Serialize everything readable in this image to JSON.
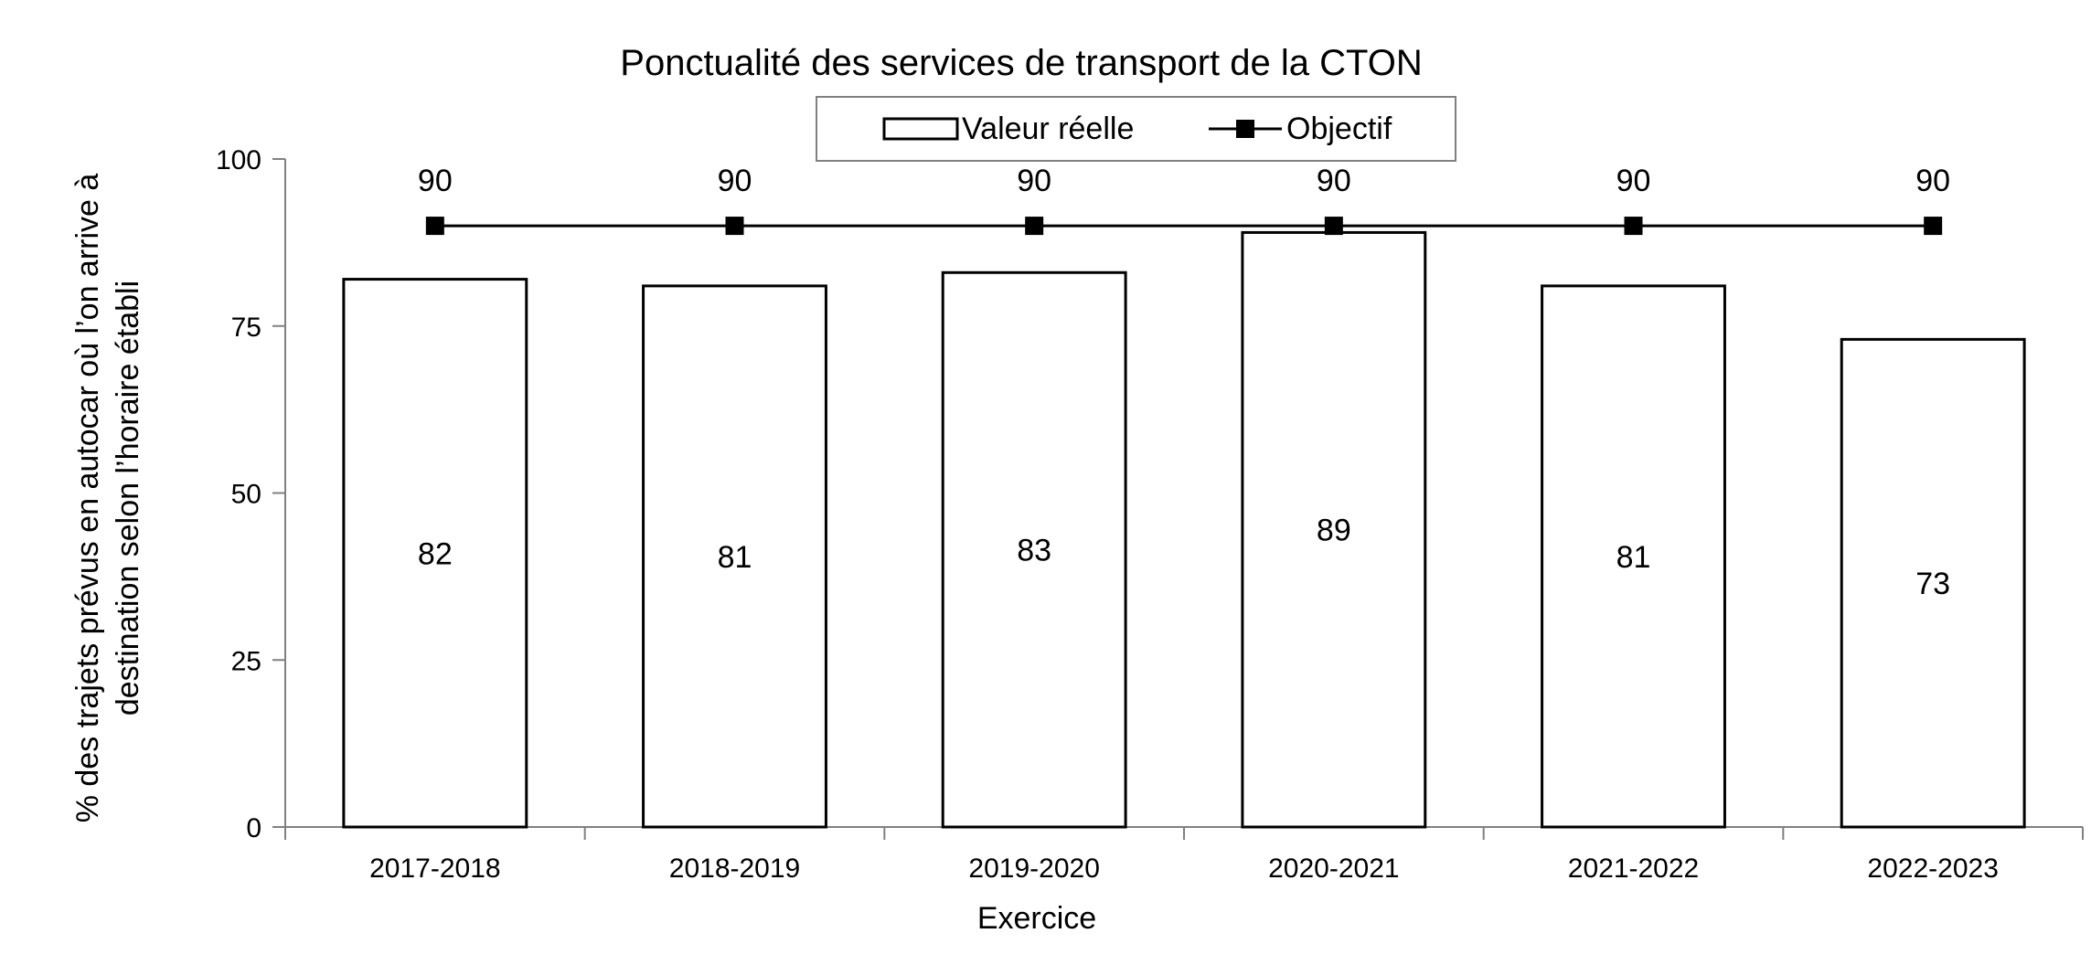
{
  "chart_data": {
    "type": "bar",
    "title": "Ponctualité des services de transport de la CTON",
    "xlabel": "Exercice",
    "ylabel_lines": [
      "% des trajets prévus en autocar où l’on arrive à",
      "destination selon l’horaire établi"
    ],
    "categories": [
      "2017-2018",
      "2018-2019",
      "2019-2020",
      "2020-2021",
      "2021-2022",
      "2022-2023"
    ],
    "series": [
      {
        "name": "Valeur réelle",
        "kind": "bar",
        "values": [
          82,
          81,
          83,
          89,
          81,
          73
        ]
      },
      {
        "name": "Objectif",
        "kind": "line",
        "marker": "square",
        "values": [
          90,
          90,
          90,
          90,
          90,
          90
        ]
      }
    ],
    "ylim": [
      0,
      100
    ],
    "yticks": [
      "0",
      "25",
      "50",
      "75",
      "100"
    ],
    "grid": false,
    "legend": {
      "placement": "top-center",
      "items": [
        "Valeur réelle",
        "Objectif"
      ]
    },
    "colors": {
      "bar_fill": "#ffffff",
      "bar_stroke": "#000000",
      "line": "#000000",
      "axis": "#808080"
    }
  }
}
